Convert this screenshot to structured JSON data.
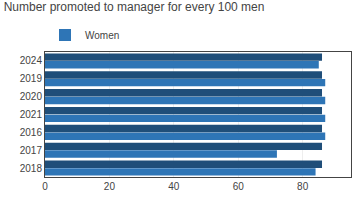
{
  "chart_data": {
    "type": "bar",
    "orientation": "horizontal",
    "title": "Number promoted to manager for every 100 men",
    "categories": [
      "2018",
      "2017",
      "2016",
      "2021",
      "2020",
      "2019",
      "2024"
    ],
    "series": [
      {
        "color": "#1f4e79",
        "values": [
          86,
          86,
          86,
          86,
          86,
          86,
          86
        ]
      },
      {
        "name": "Women",
        "color": "#2e75b6",
        "values": [
          84,
          72,
          87,
          87,
          87,
          87,
          85
        ]
      }
    ],
    "xlim": [
      0,
      95
    ],
    "xticks": [
      0,
      20,
      40,
      60,
      80
    ],
    "grid": true,
    "legend": "upper left"
  }
}
